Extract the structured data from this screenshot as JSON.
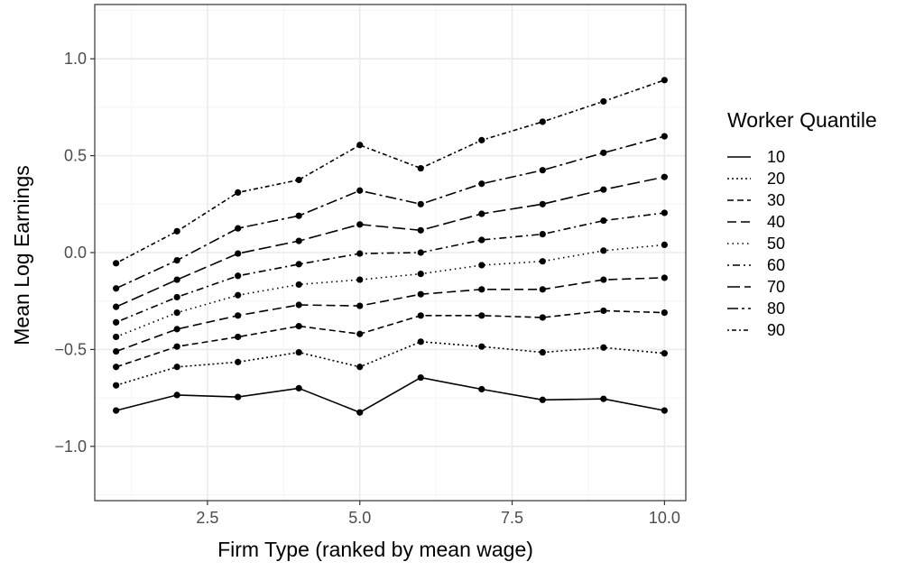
{
  "chart_data": {
    "type": "line",
    "xlabel": "Firm Type (ranked by mean wage)",
    "ylabel": "Mean Log Earnings",
    "xlim": [
      0.65,
      10.35
    ],
    "ylim": [
      -1.28,
      1.28
    ],
    "x_ticks": [
      2.5,
      5.0,
      7.5,
      10.0
    ],
    "x_tick_labels": [
      "2.5",
      "5.0",
      "7.5",
      "10.0"
    ],
    "y_ticks": [
      -1.0,
      -0.5,
      0.0,
      0.5,
      1.0
    ],
    "y_tick_labels": [
      "−1.0",
      "−0.5",
      "0.0",
      "0.5",
      "1.0"
    ],
    "grid": true,
    "legend_title": "Worker Quantile",
    "legend_position": "right",
    "x": [
      1,
      2,
      3,
      4,
      5,
      6,
      7,
      8,
      9,
      10
    ],
    "series": [
      {
        "name": "10",
        "dash": "solid",
        "values": [
          -0.815,
          -0.735,
          -0.745,
          -0.7,
          -0.825,
          -0.645,
          -0.705,
          -0.76,
          -0.755,
          -0.815
        ]
      },
      {
        "name": "20",
        "dash": "dotted",
        "values": [
          -0.685,
          -0.59,
          -0.565,
          -0.515,
          -0.59,
          -0.46,
          -0.485,
          -0.515,
          -0.49,
          -0.52
        ]
      },
      {
        "name": "30",
        "dash": "dashed",
        "values": [
          -0.59,
          -0.485,
          -0.435,
          -0.38,
          -0.42,
          -0.325,
          -0.325,
          -0.335,
          -0.3,
          -0.31
        ]
      },
      {
        "name": "40",
        "dash": "longdash-short",
        "values": [
          -0.51,
          -0.395,
          -0.325,
          -0.27,
          -0.275,
          -0.215,
          -0.19,
          -0.19,
          -0.14,
          -0.13
        ]
      },
      {
        "name": "50",
        "dash": "dotted-sparse",
        "values": [
          -0.435,
          -0.31,
          -0.22,
          -0.165,
          -0.14,
          -0.11,
          -0.065,
          -0.045,
          0.01,
          0.04
        ]
      },
      {
        "name": "60",
        "dash": "dotdash",
        "values": [
          -0.36,
          -0.23,
          -0.12,
          -0.06,
          -0.005,
          0.0,
          0.065,
          0.095,
          0.165,
          0.205
        ]
      },
      {
        "name": "70",
        "dash": "longdash",
        "values": [
          -0.28,
          -0.14,
          -0.005,
          0.06,
          0.145,
          0.115,
          0.2,
          0.25,
          0.325,
          0.39
        ]
      },
      {
        "name": "80",
        "dash": "twodash",
        "values": [
          -0.185,
          -0.04,
          0.125,
          0.19,
          0.32,
          0.25,
          0.355,
          0.425,
          0.515,
          0.6
        ]
      },
      {
        "name": "90",
        "dash": "dotdash-dense",
        "values": [
          -0.055,
          0.11,
          0.31,
          0.375,
          0.555,
          0.435,
          0.58,
          0.675,
          0.78,
          0.89
        ]
      }
    ],
    "colors": {
      "line": "#000000",
      "grid_major": "#ebebeb",
      "grid_minor": "#f5f5f5",
      "panel_border": "#333333",
      "tick_text": "#4d4d4d"
    }
  }
}
